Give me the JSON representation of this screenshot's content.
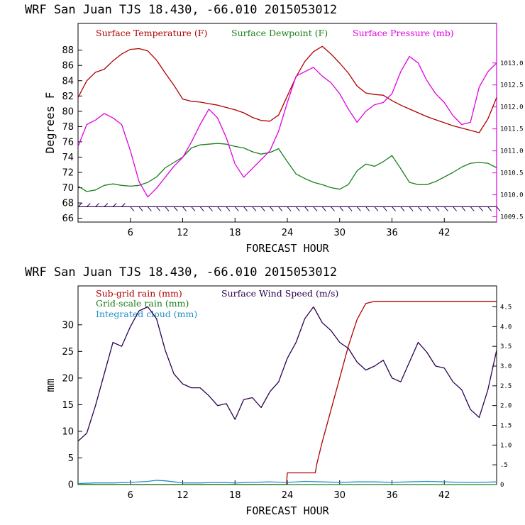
{
  "chart_data": [
    {
      "type": "line",
      "title": "WRF   San Juan TJS  18.430, -66.010  2015053012",
      "xlabel": "FORECAST HOUR",
      "ylabel": "Degrees F",
      "xlim": [
        0,
        48
      ],
      "ylim": [
        65.5,
        91.5
      ],
      "x_ticks": [
        6,
        12,
        18,
        24,
        30,
        36,
        42
      ],
      "y_ticks": [
        66,
        68,
        70,
        72,
        74,
        76,
        78,
        80,
        82,
        84,
        86,
        88
      ],
      "y2lim": [
        1009.38,
        1013.9
      ],
      "y2_ticks": [
        1009.5,
        1010.0,
        1010.5,
        1011.0,
        1011.5,
        1012.0,
        1012.5,
        1013.0
      ],
      "y2_tick_labels": [
        "1009.5",
        "1010.0",
        "1010.5",
        "1011.0",
        "1011.5",
        "1012.0",
        "1012.5",
        "1013.0"
      ],
      "legend_position": "top",
      "series": [
        {
          "name": "Surface Temperature (F)",
          "color": "#b00000",
          "axis": "left",
          "x": [
            0,
            1,
            2,
            3,
            4,
            5,
            6,
            7,
            8,
            9,
            10,
            11,
            12,
            13,
            14,
            15,
            16,
            17,
            18,
            19,
            20,
            21,
            22,
            23,
            24,
            25,
            26,
            27,
            28,
            29,
            30,
            31,
            32,
            33,
            34,
            35,
            36,
            37,
            38,
            39,
            40,
            41,
            42,
            43,
            44,
            45,
            46,
            47,
            48
          ],
          "y": [
            81.8,
            84,
            85.1,
            85.5,
            86.6,
            87.5,
            88.1,
            88.2,
            87.9,
            86.7,
            85,
            83.4,
            81.6,
            81.3,
            81.2,
            81,
            80.8,
            80.5,
            80.2,
            79.8,
            79.2,
            78.8,
            78.7,
            79.5,
            82,
            84.5,
            86.5,
            87.8,
            88.5,
            87.5,
            86.3,
            85,
            83.3,
            82.4,
            82.2,
            82.1,
            81.4,
            80.8,
            80.3,
            79.8,
            79.3,
            78.9,
            78.5,
            78.1,
            77.8,
            77.5,
            77.2,
            79,
            81.8
          ]
        },
        {
          "name": "Surface Dewpoint (F)",
          "color": "#1a7f1a",
          "axis": "left",
          "x": [
            0,
            1,
            2,
            3,
            4,
            5,
            6,
            7,
            8,
            9,
            10,
            11,
            12,
            13,
            14,
            15,
            16,
            17,
            18,
            19,
            20,
            21,
            22,
            23,
            24,
            25,
            26,
            27,
            28,
            29,
            30,
            31,
            32,
            33,
            34,
            35,
            36,
            37,
            38,
            39,
            40,
            41,
            42,
            43,
            44,
            45,
            46,
            47,
            48
          ],
          "y": [
            70.2,
            69.5,
            69.7,
            70.3,
            70.5,
            70.3,
            70.2,
            70.3,
            70.7,
            71.4,
            72.6,
            73.3,
            74,
            75.2,
            75.6,
            75.7,
            75.8,
            75.7,
            75.4,
            75.2,
            74.7,
            74.4,
            74.6,
            75.1,
            73.4,
            71.8,
            71.2,
            70.7,
            70.4,
            70,
            69.8,
            70.4,
            72.2,
            73.1,
            72.8,
            73.4,
            74.2,
            72.5,
            70.7,
            70.4,
            70.4,
            70.8,
            71.4,
            72,
            72.7,
            73.2,
            73.3,
            73.2,
            72.6
          ]
        },
        {
          "name": "Surface Pressure (mb)",
          "color": "#e000e0",
          "axis": "right",
          "x": [
            0,
            1,
            2,
            3,
            4,
            5,
            6,
            7,
            8,
            9,
            10,
            11,
            12,
            13,
            14,
            15,
            16,
            17,
            18,
            19,
            20,
            21,
            22,
            23,
            24,
            25,
            26,
            27,
            28,
            29,
            30,
            31,
            32,
            33,
            34,
            35,
            36,
            37,
            38,
            39,
            40,
            41,
            42,
            43,
            44,
            45,
            46,
            47,
            48
          ],
          "y": [
            1011.1,
            1011.6,
            1011.7,
            1011.85,
            1011.75,
            1011.6,
            1011.0,
            1010.3,
            1009.95,
            1010.15,
            1010.4,
            1010.65,
            1010.85,
            1011.2,
            1011.6,
            1011.95,
            1011.75,
            1011.3,
            1010.7,
            1010.4,
            1010.6,
            1010.8,
            1011.0,
            1011.45,
            1012.1,
            1012.7,
            1012.8,
            1012.9,
            1012.7,
            1012.55,
            1012.3,
            1011.95,
            1011.65,
            1011.9,
            1012.05,
            1012.1,
            1012.3,
            1012.8,
            1013.15,
            1013.0,
            1012.6,
            1012.3,
            1012.1,
            1011.8,
            1011.6,
            1011.65,
            1012.45,
            1012.8,
            1013.0
          ]
        },
        {
          "name": "Wind barbs",
          "color": "#2a0050",
          "axis": "left",
          "x": [
            0,
            1,
            2,
            3,
            4,
            5,
            6,
            7,
            8,
            9,
            10,
            11,
            12,
            13,
            14,
            15,
            16,
            17,
            18,
            19,
            20,
            21,
            22,
            23,
            24,
            25,
            26,
            27,
            28,
            29,
            30,
            31,
            32,
            33,
            34,
            35,
            36,
            37,
            38,
            39,
            40,
            41,
            42,
            43,
            44,
            45,
            46,
            47,
            48
          ],
          "y": [
            67.5,
            67.5,
            67.5,
            67.5,
            67.5,
            67.5,
            67.5,
            67.5,
            67.5,
            67.5,
            67.5,
            67.5,
            67.5,
            67.5,
            67.5,
            67.5,
            67.5,
            67.5,
            67.5,
            67.5,
            67.5,
            67.5,
            67.5,
            67.5,
            67.5,
            67.5,
            67.5,
            67.5,
            67.5,
            67.5,
            67.5,
            67.5,
            67.5,
            67.5,
            67.5,
            67.5,
            67.5,
            67.5,
            67.5,
            67.5,
            67.5,
            67.5,
            67.5,
            67.5,
            67.5,
            67.5,
            67.5,
            67.5,
            67.5
          ]
        }
      ]
    },
    {
      "type": "line",
      "title": "WRF   San Juan TJS  18.430, -66.010  2015053012",
      "xlabel": "FORECAST HOUR",
      "ylabel": "mm",
      "xlim": [
        0,
        48
      ],
      "ylim": [
        0,
        37.3
      ],
      "x_ticks": [
        6,
        12,
        18,
        24,
        30,
        36,
        42
      ],
      "y_ticks": [
        0,
        5,
        10,
        15,
        20,
        25,
        30
      ],
      "y2lim": [
        0,
        5.03
      ],
      "y2_ticks": [
        0,
        0.5,
        1.0,
        1.5,
        2.0,
        2.5,
        3.0,
        3.5,
        4.0,
        4.5
      ],
      "y2_tick_labels": [
        "0",
        ".5",
        "1.0",
        "1.5",
        "2.0",
        "2.5",
        "3.0",
        "3.5",
        "4.0",
        "4.5"
      ],
      "legend_position": "top",
      "series": [
        {
          "name": "Sub-grid rain (mm)",
          "color": "#b00000",
          "axis": "left",
          "x": [
            0,
            23.9,
            24,
            27.2,
            27.4,
            28,
            29,
            30,
            31,
            32,
            33,
            34,
            40,
            48
          ],
          "y": [
            0,
            0,
            2.2,
            2.2,
            4,
            8,
            14,
            20,
            26,
            31,
            34,
            34.4,
            34.4,
            34.4
          ]
        },
        {
          "name": "Surface Wind Speed (m/s)",
          "color": "#2a0050",
          "axis": "right",
          "x": [
            0,
            1,
            2,
            3,
            4,
            5,
            6,
            7,
            8,
            9,
            10,
            11,
            12,
            13,
            14,
            15,
            16,
            17,
            18,
            19,
            20,
            21,
            22,
            23,
            24,
            25,
            26,
            27,
            28,
            29,
            30,
            31,
            32,
            33,
            34,
            35,
            36,
            37,
            38,
            39,
            40,
            41,
            42,
            43,
            44,
            45,
            46,
            47,
            48
          ],
          "y": [
            1.1,
            1.3,
            2.0,
            2.8,
            3.6,
            3.5,
            4.0,
            4.4,
            4.5,
            4.2,
            3.4,
            2.8,
            2.55,
            2.45,
            2.45,
            2.25,
            2.0,
            2.05,
            1.65,
            2.15,
            2.2,
            1.95,
            2.35,
            2.6,
            3.2,
            3.6,
            4.2,
            4.5,
            4.1,
            3.9,
            3.6,
            3.45,
            3.1,
            2.9,
            3.0,
            3.15,
            2.7,
            2.6,
            3.1,
            3.6,
            3.35,
            3.0,
            2.95,
            2.6,
            2.4,
            1.9,
            1.7,
            2.4,
            3.4
          ]
        },
        {
          "name": "Grid-scale rain (mm)",
          "color": "#1a7f1a",
          "axis": "left",
          "x": [
            0,
            12,
            24,
            36,
            48
          ],
          "y": [
            0,
            0,
            0,
            0,
            0
          ]
        },
        {
          "name": "Integrated cloud (mm)",
          "color": "#1e90c8",
          "axis": "left",
          "x": [
            0,
            2,
            4,
            6,
            8,
            9,
            10,
            11,
            12,
            14,
            16,
            18,
            20,
            22,
            24,
            26,
            28,
            30,
            32,
            34,
            36,
            38,
            40,
            42,
            44,
            46,
            48
          ],
          "y": [
            0.2,
            0.3,
            0.3,
            0.4,
            0.6,
            0.8,
            0.7,
            0.5,
            0.3,
            0.3,
            0.4,
            0.3,
            0.4,
            0.5,
            0.4,
            0.6,
            0.5,
            0.4,
            0.5,
            0.5,
            0.4,
            0.5,
            0.6,
            0.5,
            0.4,
            0.4,
            0.5
          ]
        }
      ]
    }
  ]
}
